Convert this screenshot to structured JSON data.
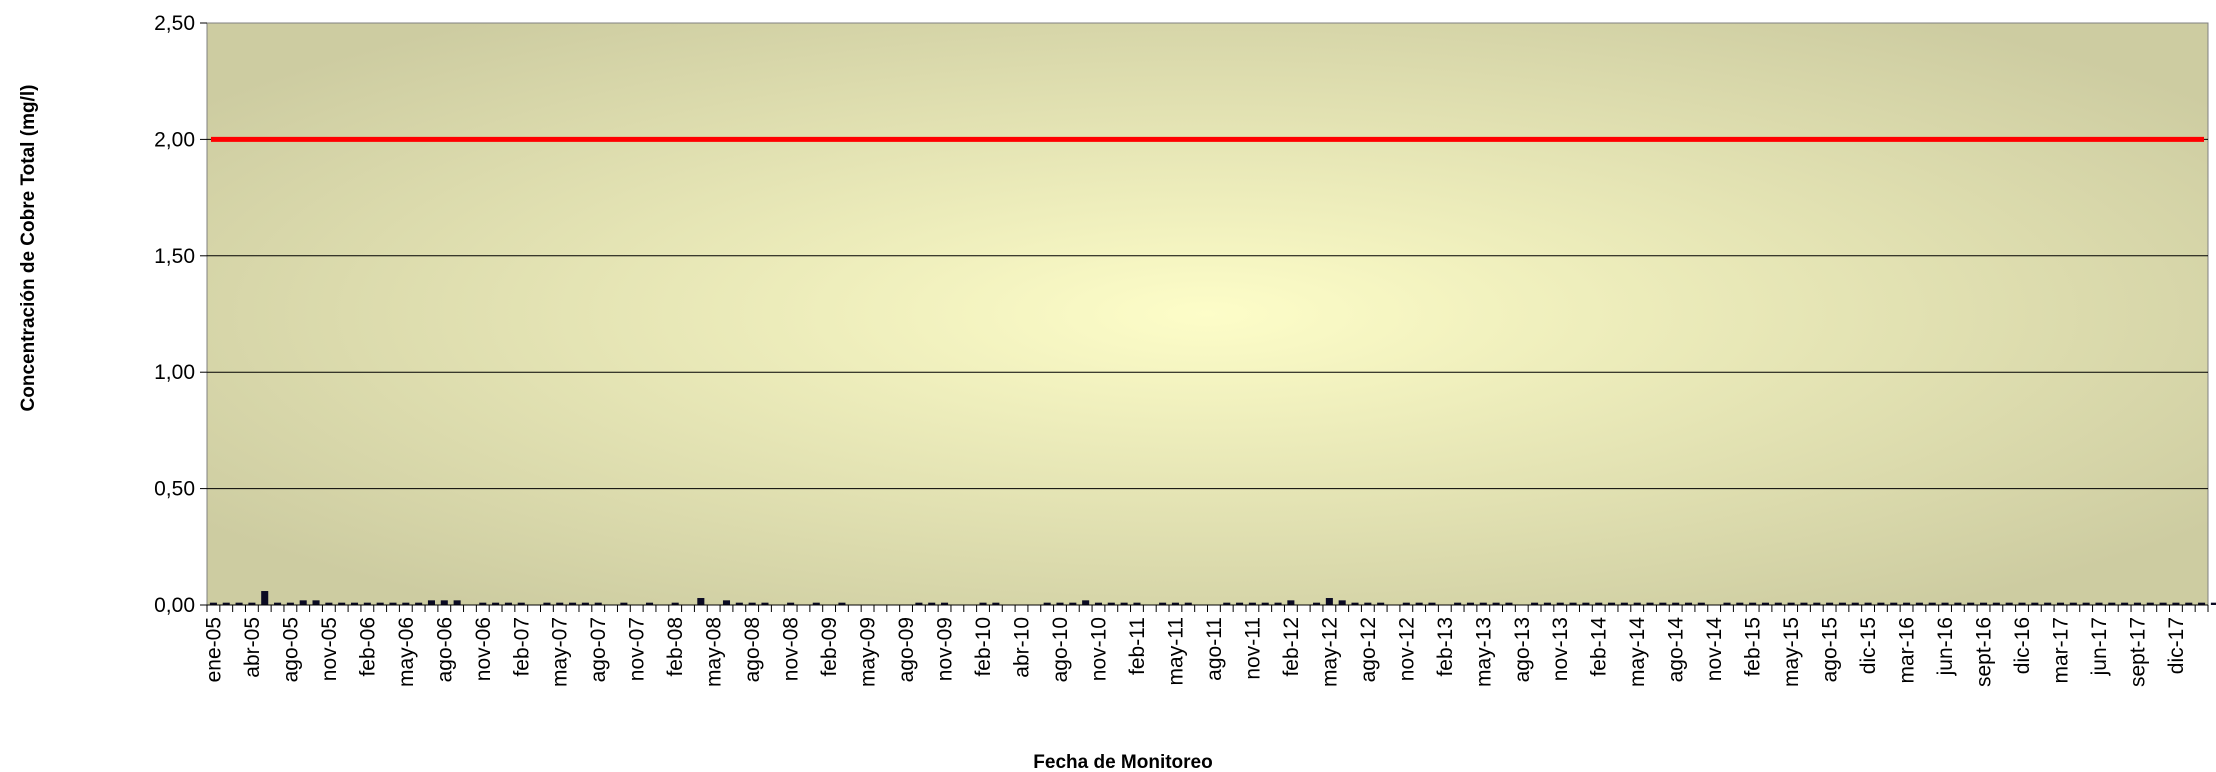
{
  "chart_data": {
    "type": "bar",
    "title": "",
    "xlabel": "Fecha de Monitoreo",
    "ylabel": "Concentración de Cobre Total (mg/l)",
    "ylim": [
      0,
      2.5
    ],
    "yticks": [
      "0,00",
      "0,50",
      "1,00",
      "1,50",
      "2,00",
      "2,50"
    ],
    "ytick_values": [
      0,
      0.5,
      1,
      1.5,
      2,
      2.5
    ],
    "grid": true,
    "legend": "none",
    "x_tick_labels": [
      "ene-05",
      "abr-05",
      "ago-05",
      "nov-05",
      "feb-06",
      "may-06",
      "ago-06",
      "nov-06",
      "feb-07",
      "may-07",
      "ago-07",
      "nov-07",
      "feb-08",
      "may-08",
      "ago-08",
      "nov-08",
      "feb-09",
      "may-09",
      "ago-09",
      "nov-09",
      "feb-10",
      "abr-10",
      "ago-10",
      "nov-10",
      "feb-11",
      "may-11",
      "ago-11",
      "nov-11",
      "feb-12",
      "may-12",
      "ago-12",
      "nov-12",
      "feb-13",
      "may-13",
      "ago-13",
      "nov-13",
      "feb-14",
      "may-14",
      "ago-14",
      "nov-14",
      "feb-15",
      "may-15",
      "ago-15",
      "dic-15",
      "mar-16",
      "jun-16",
      "sept-16",
      "dic-16",
      "mar-17",
      "jun-17",
      "sept-17",
      "dic-17"
    ],
    "n_categories": 156,
    "values": [
      0.01,
      0.01,
      0.01,
      0.01,
      0.06,
      0.01,
      0.01,
      0.02,
      0.02,
      0.01,
      0.01,
      0.01,
      0.01,
      0.01,
      0.01,
      0.01,
      0.01,
      0.02,
      0.02,
      0.02,
      null,
      0.01,
      0.01,
      0.01,
      0.01,
      null,
      0.01,
      0.01,
      0.01,
      0.01,
      0.01,
      null,
      0.01,
      null,
      0.01,
      null,
      0.01,
      null,
      0.03,
      null,
      0.02,
      0.01,
      0.01,
      0.01,
      null,
      0.01,
      null,
      0.01,
      null,
      0.01,
      null,
      null,
      null,
      null,
      null,
      0.01,
      0.01,
      0.01,
      null,
      null,
      0.01,
      0.01,
      null,
      null,
      null,
      0.01,
      0.01,
      0.01,
      0.02,
      0.01,
      0.01,
      0.01,
      0.01,
      null,
      0.01,
      0.01,
      0.01,
      null,
      null,
      0.01,
      0.01,
      0.01,
      0.01,
      0.01,
      0.02,
      null,
      0.01,
      0.03,
      0.02,
      0.01,
      0.01,
      0.01,
      null,
      0.01,
      0.01,
      0.01,
      null,
      0.01,
      0.01,
      0.01,
      0.01,
      0.01,
      null,
      0.01,
      0.01,
      0.01,
      0.01,
      0.01,
      0.01,
      0.01,
      0.01,
      0.01,
      0.01,
      0.01,
      0.01,
      0.01,
      0.01,
      null,
      0.01,
      0.01,
      0.01,
      0.01,
      0.01,
      0.01,
      0.01,
      0.01,
      0.01,
      0.01,
      0.01,
      0.01,
      0.01,
      0.01,
      0.01,
      0.01,
      0.01,
      0.01,
      0.01,
      0.01,
      0.01,
      0.01,
      0.01,
      0.01,
      0.01,
      0.01,
      0.01,
      0.01,
      0.01,
      0.01,
      0.01,
      0.01,
      0.01,
      0.01,
      0.01,
      0.01,
      0.01,
      0.01,
      0.01,
      0.01
    ],
    "reference_line": {
      "value": 2.0
    },
    "colors": {
      "bar": "#0a0a23",
      "reference_line": "#ff0000",
      "plot_bg_center": "#fdfdc8",
      "plot_bg_edge": "#cdcca1",
      "grid": "#000000"
    }
  }
}
